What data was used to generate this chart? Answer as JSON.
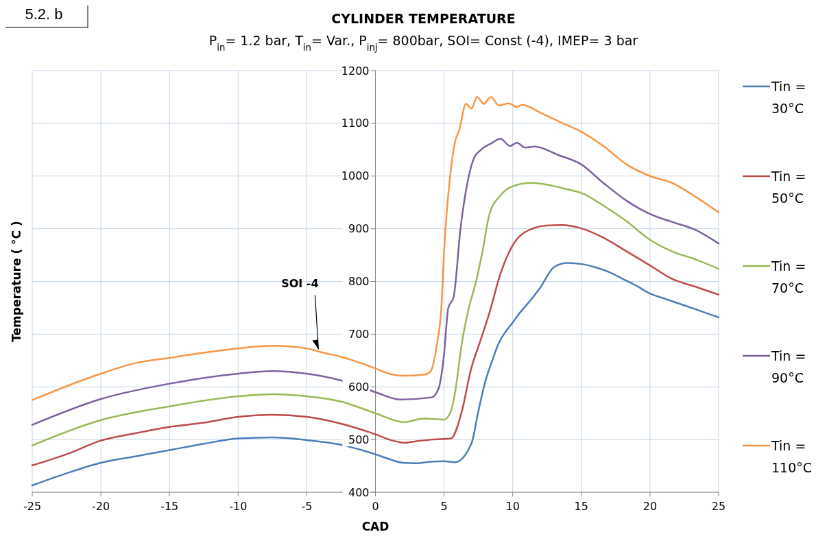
{
  "chart_data": {
    "type": "line",
    "title": "CYLINDER TEMPERATURE",
    "subtitle": "P$_{in}$= 1.2 bar, T$_{in}$= Var., P$_{inj}$= 800bar, SOI= Const (-4), IMEP= 3 bar",
    "xlabel": "CAD",
    "ylabel": "Temperature ( °C )",
    "xlim": [
      -25,
      25
    ],
    "xticks": [
      -25,
      -20,
      -15,
      -10,
      -5,
      0,
      5,
      10,
      15,
      20,
      25
    ],
    "ylim": [
      400,
      1200
    ],
    "yticks": [
      400,
      500,
      600,
      700,
      800,
      900,
      1000,
      1100,
      1200
    ],
    "grid": true,
    "legend": "right",
    "marker": "none",
    "line_style": "solid",
    "annotations": [
      "5.2. b",
      {
        "text": "SOI -4",
        "x": -4,
        "y": 666
      }
    ],
    "series": [
      {
        "name": "Tin = 30°C",
        "color": "#4a7ebb",
        "x": [
          -25,
          -22.5,
          -20,
          -17.5,
          -15,
          -12.5,
          -10,
          -7.5,
          -5,
          -2.5,
          0,
          1,
          2,
          3,
          4,
          5,
          5.8,
          7,
          7.5,
          8,
          8.5,
          9,
          9.5,
          10,
          10.5,
          11,
          12,
          13,
          14,
          15,
          16,
          17,
          18,
          19,
          20,
          21,
          22,
          23,
          24,
          25
        ],
        "values": [
          413,
          436,
          456,
          468,
          480,
          492,
          502,
          504,
          499,
          490,
          472,
          463,
          456,
          455,
          458,
          459,
          457,
          493,
          554,
          610,
          649,
          684,
          705,
          722,
          740,
          755,
          788,
          827,
          835,
          833,
          827,
          818,
          805,
          792,
          777,
          768,
          759,
          750,
          741,
          732
        ]
      },
      {
        "name": "Tin = 50°C",
        "color": "#be4b48",
        "x": [
          -25,
          -22.5,
          -20,
          -17.5,
          -15,
          -12.5,
          -10,
          -7.5,
          -5,
          -2.5,
          0,
          1,
          2.1,
          3,
          4.1,
          5.5,
          6.3,
          6.95,
          7.6,
          8.3,
          9.1,
          9.94,
          10.8,
          12.45,
          13.6,
          14.97,
          16.6,
          18.3,
          19.96,
          21.6,
          23.3,
          25
        ],
        "values": [
          451,
          472,
          498,
          512,
          524,
          532,
          543,
          547,
          543,
          530,
          510,
          500,
          494,
          497,
          500,
          502,
          554,
          632,
          684,
          740,
          814,
          866,
          892,
          906,
          907,
          901,
          883,
          857,
          831,
          805,
          790,
          775
        ]
      },
      {
        "name": "Tin = 70°C",
        "color": "#98b954",
        "x": [
          -25,
          -20,
          -15,
          -10,
          -7.5,
          -5,
          -2.5,
          0,
          2.1,
          3.5,
          5,
          5.5,
          5.8,
          6.3,
          6.8,
          7.3,
          7.8,
          8.3,
          9.1,
          9.94,
          11.4,
          12.4,
          14.1,
          15,
          16.6,
          18.3,
          20,
          21.6,
          23.3,
          25
        ],
        "values": [
          489,
          537,
          563,
          582,
          586,
          582,
          572,
          550,
          533,
          540,
          538,
          554,
          589,
          684,
          749,
          797,
          857,
          927,
          963,
          980,
          987,
          984,
          974,
          968,
          944,
          914,
          879,
          857,
          842,
          824
        ]
      },
      {
        "name": "Tin = 90°C",
        "color": "#7d60a0",
        "x": [
          -25,
          -20,
          -15,
          -10,
          -7.5,
          -5,
          -2.5,
          0,
          1.8,
          4.1,
          4.6,
          5,
          5.3,
          5.7,
          6.2,
          6.7,
          7.2,
          7.7,
          8.5,
          9.1,
          9.8,
          10.3,
          10.9,
          11.6,
          13.3,
          15,
          16.6,
          18.3,
          20,
          21.6,
          23.3,
          25
        ],
        "values": [
          528,
          577,
          606,
          625,
          630,
          625,
          612,
          590,
          576,
          580,
          597,
          662,
          749,
          771,
          901,
          987,
          1035,
          1050,
          1063,
          1071,
          1057,
          1063,
          1054,
          1056,
          1040,
          1022,
          987,
          953,
          928,
          913,
          898,
          872
        ]
      },
      {
        "name": "Tin = 110°C",
        "color": "#f79646",
        "x": [
          -25,
          -20,
          -17.5,
          -15,
          -10,
          -7.5,
          -5,
          -4,
          -2.5,
          0,
          1,
          2,
          3.5,
          4,
          4.5,
          4.8,
          5,
          5.5,
          5.8,
          6.1,
          6.6,
          7,
          7.4,
          7.9,
          8.4,
          9,
          9.7,
          10.3,
          10.7,
          12.1,
          13.5,
          15,
          16.6,
          18.3,
          20,
          21.6,
          23.3,
          25
        ],
        "values": [
          575,
          625,
          645,
          655,
          673,
          678,
          673,
          666,
          657,
          635,
          625,
          621,
          623,
          629,
          684,
          749,
          857,
          1013,
          1065,
          1087,
          1137,
          1128,
          1150,
          1137,
          1150,
          1134,
          1138,
          1131,
          1135,
          1119,
          1102,
          1084,
          1057,
          1022,
          1000,
          987,
          961,
          931
        ]
      }
    ]
  }
}
